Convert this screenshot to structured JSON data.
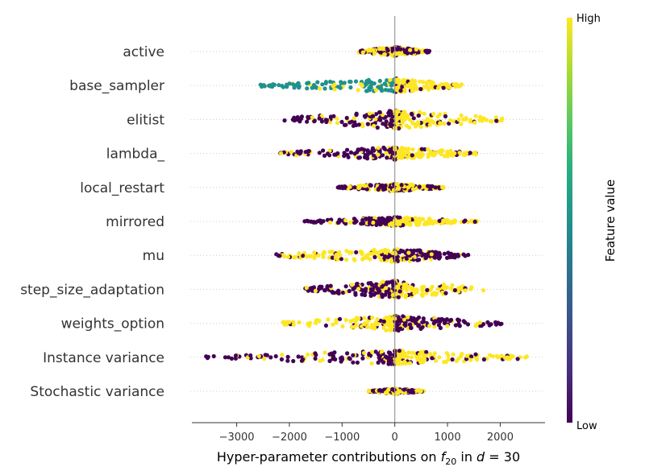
{
  "chart_data": {
    "type": "scatter",
    "subtype": "beeswarm",
    "features": [
      {
        "name": "active",
        "min": -700,
        "max": 700,
        "low_side": "both",
        "high_side": "both",
        "width": 0.35,
        "center": 0
      },
      {
        "name": "base_sampler",
        "min": -2550,
        "max": 1270,
        "low_side": "right",
        "high_side": "right",
        "mid_side": "left",
        "width": 0.55,
        "center": 50
      },
      {
        "name": "elitist",
        "min": -2100,
        "max": 2050,
        "low_side": "left",
        "high_side": "right",
        "width": 0.75,
        "center": 0
      },
      {
        "name": "lambda_",
        "min": -2300,
        "max": 1550,
        "low_side": "left",
        "high_side": "right",
        "width": 0.5,
        "center": 0
      },
      {
        "name": "local_restart",
        "min": -1100,
        "max": 950,
        "low_side": "both",
        "high_side": "both",
        "width": 0.3,
        "center": 0
      },
      {
        "name": "mirrored",
        "min": -1750,
        "max": 1600,
        "low_side": "left",
        "high_side": "right",
        "width": 0.35,
        "center": 0
      },
      {
        "name": "mu",
        "min": -2250,
        "max": 1400,
        "low_side": "right",
        "high_side": "left",
        "width": 0.55,
        "center": 0
      },
      {
        "name": "step_size_adaptation",
        "min": -1700,
        "max": 1700,
        "low_side": "left",
        "high_side": "right",
        "width": 0.7,
        "center": 0
      },
      {
        "name": "weights_option",
        "min": -2200,
        "max": 2050,
        "low_side": "right",
        "high_side": "left",
        "width": 0.6,
        "center": 0
      },
      {
        "name": "Instance variance",
        "min": -3600,
        "max": 2550,
        "low_side": "left",
        "high_side": "right",
        "width": 0.55,
        "center": 0
      },
      {
        "name": "Stochastic variance",
        "min": -500,
        "max": 550,
        "low_side": "both",
        "high_side": "both",
        "width": 0.2,
        "center": 0
      }
    ],
    "xlim": [
      -3850,
      2850
    ],
    "xticks": [
      -3000,
      -2000,
      -1000,
      0,
      1000,
      2000
    ],
    "xtick_labels": [
      "−3000",
      "−2000",
      "−1000",
      "0",
      "1000",
      "2000"
    ],
    "xlabel_prefix": "Hyper-parameter contributions on ",
    "xlabel_f": "f",
    "xlabel_sub": "20",
    "xlabel_mid": " in ",
    "xlabel_d": "d",
    "xlabel_eq": " = 30",
    "colorbar": {
      "title": "Feature value",
      "high_label": "High",
      "low_label": "Low",
      "colormap": "viridis"
    },
    "colors": {
      "low": "#440154",
      "mid": "#21918c",
      "high": "#fde725",
      "zero_line": "#999999",
      "grid": "#cccccc",
      "axis": "#333333"
    }
  }
}
